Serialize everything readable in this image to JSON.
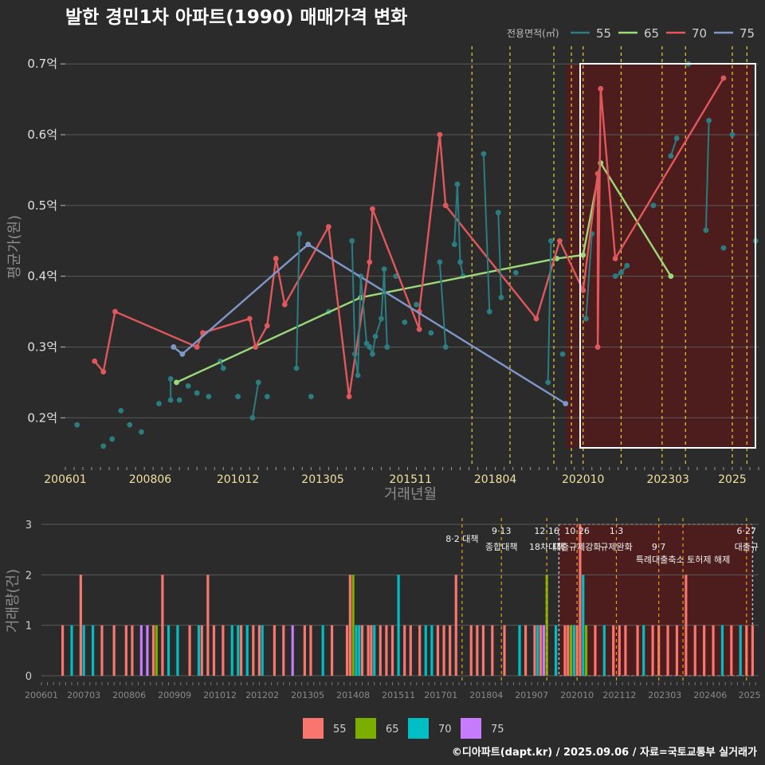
{
  "title": "발한 경민1차 아파트(1990) 매매가격 변화",
  "credit": "©디아파트(dapt.kr) / 2025.09.06 / 자료=국토교통부 실거래가",
  "colors": {
    "background": "#2b2b2b",
    "s55": "#2a7d80",
    "s65": "#9bd97a",
    "s70": "#e0575c",
    "s75": "#7f97c8",
    "b55": "#f8766d",
    "b65": "#7cae00",
    "b70": "#00bfc4",
    "b75": "#c77cff",
    "highlight": "#5a1a1a",
    "policy": "#e6d23a",
    "policy_bottom": "#e6a020"
  },
  "chart_data": [
    {
      "type": "line",
      "title": "발한 경민1차 아파트(1990) 매매가격 변화",
      "xlabel": "거래년월",
      "ylabel": "평균가(원)",
      "x_ticks": [
        "200601",
        "200806",
        "201012",
        "201305",
        "201511",
        "201804",
        "202010",
        "202303",
        "2025"
      ],
      "y_ticks": [
        "0.2억",
        "0.3억",
        "0.4억",
        "0.5억",
        "0.6억",
        "0.7억"
      ],
      "ylim": [
        0.135,
        0.725
      ],
      "legend_title": "전용면적(㎡)",
      "legend_position": "top-right",
      "policy_lines": [
        "2017-08",
        "2018-09",
        "2019-12",
        "2020-06",
        "2020-10",
        "2021-11",
        "2023-01",
        "2023-09",
        "2025-01",
        "2025-06"
      ],
      "highlight_range": [
        "2020-04",
        "2025-08"
      ],
      "series": [
        {
          "name": "55",
          "points": [
            [
              "2006-05",
              0.19
            ],
            [
              "2007-02",
              0.16
            ],
            [
              "2007-05",
              0.17
            ],
            [
              "2007-08",
              0.21
            ],
            [
              "2007-11",
              0.19
            ],
            [
              "2008-03",
              0.18
            ],
            [
              "2008-09",
              0.22
            ],
            [
              "2009-01",
              0.255
            ],
            [
              "2009-01",
              0.225
            ],
            [
              "2009-04",
              0.225
            ],
            [
              "2009-07",
              0.245
            ],
            [
              "2009-10",
              0.235
            ],
            [
              "2010-02",
              0.23
            ],
            [
              "2010-06",
              0.28
            ],
            [
              "2010-07",
              0.27
            ],
            [
              "2010-12",
              0.23
            ],
            [
              "2011-05",
              0.2
            ],
            [
              "2011-07",
              0.25
            ],
            [
              "2011-10",
              0.23
            ],
            [
              "2012-08",
              0.27
            ],
            [
              "2012-09",
              0.46
            ],
            [
              "2013-01",
              0.23
            ],
            [
              "2013-07",
              0.35
            ],
            [
              "2014-03",
              0.45
            ],
            [
              "2014-04",
              0.29
            ],
            [
              "2014-05",
              0.26
            ],
            [
              "2014-06",
              0.4
            ],
            [
              "2014-08",
              0.305
            ],
            [
              "2014-09",
              0.3
            ],
            [
              "2014-10",
              0.29
            ],
            [
              "2014-11",
              0.315
            ],
            [
              "2015-01",
              0.34
            ],
            [
              "2015-02",
              0.41
            ],
            [
              "2015-03",
              0.3
            ],
            [
              "2015-06",
              0.4
            ],
            [
              "2015-09",
              0.335
            ],
            [
              "2016-01",
              0.36
            ],
            [
              "2016-06",
              0.32
            ],
            [
              "2016-09",
              0.42
            ],
            [
              "2016-11",
              0.3
            ],
            [
              "2017-02",
              0.445
            ],
            [
              "2017-03",
              0.53
            ],
            [
              "2017-04",
              0.42
            ],
            [
              "2017-05",
              0.4
            ],
            [
              "2017-12",
              0.573
            ],
            [
              "2018-02",
              0.35
            ],
            [
              "2018-05",
              0.49
            ],
            [
              "2018-06",
              0.37
            ],
            [
              "2018-11",
              0.405
            ],
            [
              "2019-10",
              0.25
            ],
            [
              "2019-11",
              0.45
            ],
            [
              "2020-03",
              0.29
            ],
            [
              "2020-11",
              0.34
            ],
            [
              "2021-01",
              0.46
            ],
            [
              "2021-09",
              0.4
            ],
            [
              "2021-11",
              0.405
            ],
            [
              "2022-01",
              0.415
            ],
            [
              "2022-10",
              0.5
            ],
            [
              "2023-04",
              0.57
            ],
            [
              "2023-06",
              0.595
            ],
            [
              "2023-10",
              0.7
            ],
            [
              "2024-04",
              0.465
            ],
            [
              "2024-05",
              0.62
            ],
            [
              "2024-10",
              0.44
            ],
            [
              "2025-01",
              0.6
            ],
            [
              "2025-09",
              0.45
            ]
          ]
        },
        {
          "name": "65",
          "points": [
            [
              "2009-03",
              0.25
            ],
            [
              "2014-06",
              0.37
            ],
            [
              "2020-01",
              0.425
            ],
            [
              "2020-10",
              0.43
            ],
            [
              "2021-04",
              0.56
            ],
            [
              "2023-04",
              0.4
            ]
          ]
        },
        {
          "name": "70",
          "points": [
            [
              "2006-11",
              0.28
            ],
            [
              "2007-02",
              0.265
            ],
            [
              "2007-06",
              0.35
            ],
            [
              "2009-10",
              0.3
            ],
            [
              "2009-12",
              0.32
            ],
            [
              "2011-04",
              0.34
            ],
            [
              "2011-06",
              0.3
            ],
            [
              "2011-10",
              0.33
            ],
            [
              "2012-01",
              0.425
            ],
            [
              "2012-04",
              0.36
            ],
            [
              "2013-07",
              0.47
            ],
            [
              "2014-02",
              0.23
            ],
            [
              "2014-09",
              0.42
            ],
            [
              "2014-10",
              0.495
            ],
            [
              "2016-02",
              0.325
            ],
            [
              "2016-02",
              0.35
            ],
            [
              "2016-09",
              0.6
            ],
            [
              "2016-11",
              0.5
            ],
            [
              "2019-06",
              0.34
            ],
            [
              "2020-02",
              0.45
            ],
            [
              "2020-10",
              0.38
            ],
            [
              "2021-03",
              0.545
            ],
            [
              "2021-03",
              0.3
            ],
            [
              "2021-04",
              0.665
            ],
            [
              "2021-09",
              0.425
            ],
            [
              "2024-10",
              0.68
            ]
          ]
        },
        {
          "name": "75",
          "points": [
            [
              "2009-02",
              0.3
            ],
            [
              "2009-05",
              0.29
            ],
            [
              "2012-12",
              0.445
            ],
            [
              "2020-04",
              0.22
            ]
          ]
        }
      ]
    },
    {
      "type": "bar",
      "xlabel": "",
      "ylabel": "거래량(건)",
      "x_ticks": [
        "200601",
        "200703",
        "200806",
        "200909",
        "201012",
        "201202",
        "201305",
        "201408",
        "201511",
        "201701",
        "201804",
        "201907",
        "202010",
        "202112",
        "202303",
        "202406",
        "2025"
      ],
      "y_ticks": [
        "0",
        "1",
        "2",
        "3"
      ],
      "ylim": [
        0,
        3
      ],
      "legend_position": "bottom",
      "legend": [
        "55",
        "65",
        "70",
        "75"
      ],
      "annotations": [
        {
          "date": "2017-08",
          "line1": "",
          "line2": "8·2 대책"
        },
        {
          "date": "2018-09",
          "line1": "9·13",
          "line2": "종합대책"
        },
        {
          "date": "2019-12",
          "line1": "12·16",
          "line2": "18차대책"
        },
        {
          "date": "2020-10",
          "line1": "10·26",
          "line2": "대출규제강화"
        },
        {
          "date": "2021-11",
          "line1": "1·3",
          "line2": "규제완화"
        },
        {
          "date": "2023-01",
          "line1": "",
          "line2": "9·7"
        },
        {
          "date": "2023-09",
          "line1": "",
          "line2": "특례대출축소 토허제 해제"
        },
        {
          "date": "2025-06",
          "line1": "6·27",
          "line2": "대출규"
        }
      ],
      "bars": [
        [
          "2006-08",
          "55",
          1
        ],
        [
          "2006-11",
          "70",
          1
        ],
        [
          "2007-02",
          "55",
          2
        ],
        [
          "2007-03",
          "70",
          1
        ],
        [
          "2007-06",
          "70",
          1
        ],
        [
          "2007-09",
          "55",
          1
        ],
        [
          "2008-01",
          "55",
          1
        ],
        [
          "2008-05",
          "55",
          1
        ],
        [
          "2008-07",
          "55",
          1
        ],
        [
          "2008-10",
          "75",
          1
        ],
        [
          "2008-12",
          "75",
          1
        ],
        [
          "2009-02",
          "55",
          1
        ],
        [
          "2009-03",
          "65",
          1
        ],
        [
          "2009-05",
          "55",
          2
        ],
        [
          "2009-07",
          "70",
          1
        ],
        [
          "2009-10",
          "70",
          1
        ],
        [
          "2010-02",
          "55",
          1
        ],
        [
          "2010-05",
          "70",
          1
        ],
        [
          "2010-06",
          "55",
          1
        ],
        [
          "2010-08",
          "55",
          2
        ],
        [
          "2010-10",
          "55",
          1
        ],
        [
          "2011-01",
          "55",
          1
        ],
        [
          "2011-04",
          "70",
          1
        ],
        [
          "2011-06",
          "70",
          1
        ],
        [
          "2011-07",
          "55",
          1
        ],
        [
          "2011-09",
          "70",
          1
        ],
        [
          "2011-11",
          "55",
          1
        ],
        [
          "2012-01",
          "55",
          1
        ],
        [
          "2012-02",
          "70",
          1
        ],
        [
          "2012-06",
          "55",
          1
        ],
        [
          "2012-09",
          "55",
          1
        ],
        [
          "2012-12",
          "75",
          1
        ],
        [
          "2013-04",
          "55",
          1
        ],
        [
          "2013-06",
          "55",
          1
        ],
        [
          "2013-10",
          "70",
          1
        ],
        [
          "2014-01",
          "55",
          1
        ],
        [
          "2014-06",
          "55",
          1
        ],
        [
          "2014-07",
          "55",
          2
        ],
        [
          "2014-08",
          "65",
          2
        ],
        [
          "2014-09",
          "70",
          1
        ],
        [
          "2014-10",
          "70",
          1
        ],
        [
          "2014-11",
          "55",
          1
        ],
        [
          "2015-01",
          "55",
          1
        ],
        [
          "2015-02",
          "55",
          1
        ],
        [
          "2015-03",
          "70",
          1
        ],
        [
          "2015-05",
          "55",
          1
        ],
        [
          "2015-07",
          "55",
          1
        ],
        [
          "2015-09",
          "55",
          1
        ],
        [
          "2015-11",
          "70",
          2
        ],
        [
          "2016-01",
          "55",
          1
        ],
        [
          "2016-03",
          "55",
          1
        ],
        [
          "2016-06",
          "55",
          1
        ],
        [
          "2016-08",
          "70",
          1
        ],
        [
          "2016-10",
          "70",
          1
        ],
        [
          "2016-12",
          "55",
          1
        ],
        [
          "2017-02",
          "55",
          1
        ],
        [
          "2017-04",
          "55",
          1
        ],
        [
          "2017-06",
          "55",
          2
        ],
        [
          "2017-11",
          "55",
          1
        ],
        [
          "2018-01",
          "55",
          1
        ],
        [
          "2018-03",
          "55",
          1
        ],
        [
          "2018-06",
          "55",
          1
        ],
        [
          "2018-10",
          "55",
          1
        ],
        [
          "2019-03",
          "70",
          1
        ],
        [
          "2019-05",
          "55",
          1
        ],
        [
          "2019-08",
          "55",
          1
        ],
        [
          "2019-09",
          "70",
          1
        ],
        [
          "2019-10",
          "55",
          1
        ],
        [
          "2019-11",
          "75",
          1
        ],
        [
          "2019-12",
          "65",
          2
        ],
        [
          "2020-03",
          "70",
          1
        ],
        [
          "2020-06",
          "55",
          1
        ],
        [
          "2020-07",
          "55",
          1
        ],
        [
          "2020-08",
          "65",
          1
        ],
        [
          "2020-09",
          "70",
          1
        ],
        [
          "2020-10",
          "55",
          1
        ],
        [
          "2020-11",
          "55",
          3
        ],
        [
          "2020-12",
          "70",
          2
        ],
        [
          "2021-01",
          "65",
          1
        ],
        [
          "2021-04",
          "55",
          1
        ],
        [
          "2021-07",
          "70",
          1
        ],
        [
          "2021-10",
          "55",
          1
        ],
        [
          "2021-12",
          "55",
          1
        ],
        [
          "2022-02",
          "55",
          1
        ],
        [
          "2022-06",
          "55",
          1
        ],
        [
          "2022-08",
          "70",
          1
        ],
        [
          "2022-11",
          "55",
          1
        ],
        [
          "2023-01",
          "55",
          1
        ],
        [
          "2023-04",
          "55",
          1
        ],
        [
          "2023-07",
          "55",
          1
        ],
        [
          "2023-10",
          "55",
          2
        ],
        [
          "2024-01",
          "55",
          1
        ],
        [
          "2024-04",
          "55",
          1
        ],
        [
          "2024-07",
          "55",
          1
        ],
        [
          "2024-10",
          "70",
          1
        ],
        [
          "2025-01",
          "55",
          1
        ],
        [
          "2025-04",
          "70",
          1
        ],
        [
          "2025-06",
          "55",
          1
        ],
        [
          "2025-08",
          "55",
          1
        ]
      ]
    }
  ]
}
